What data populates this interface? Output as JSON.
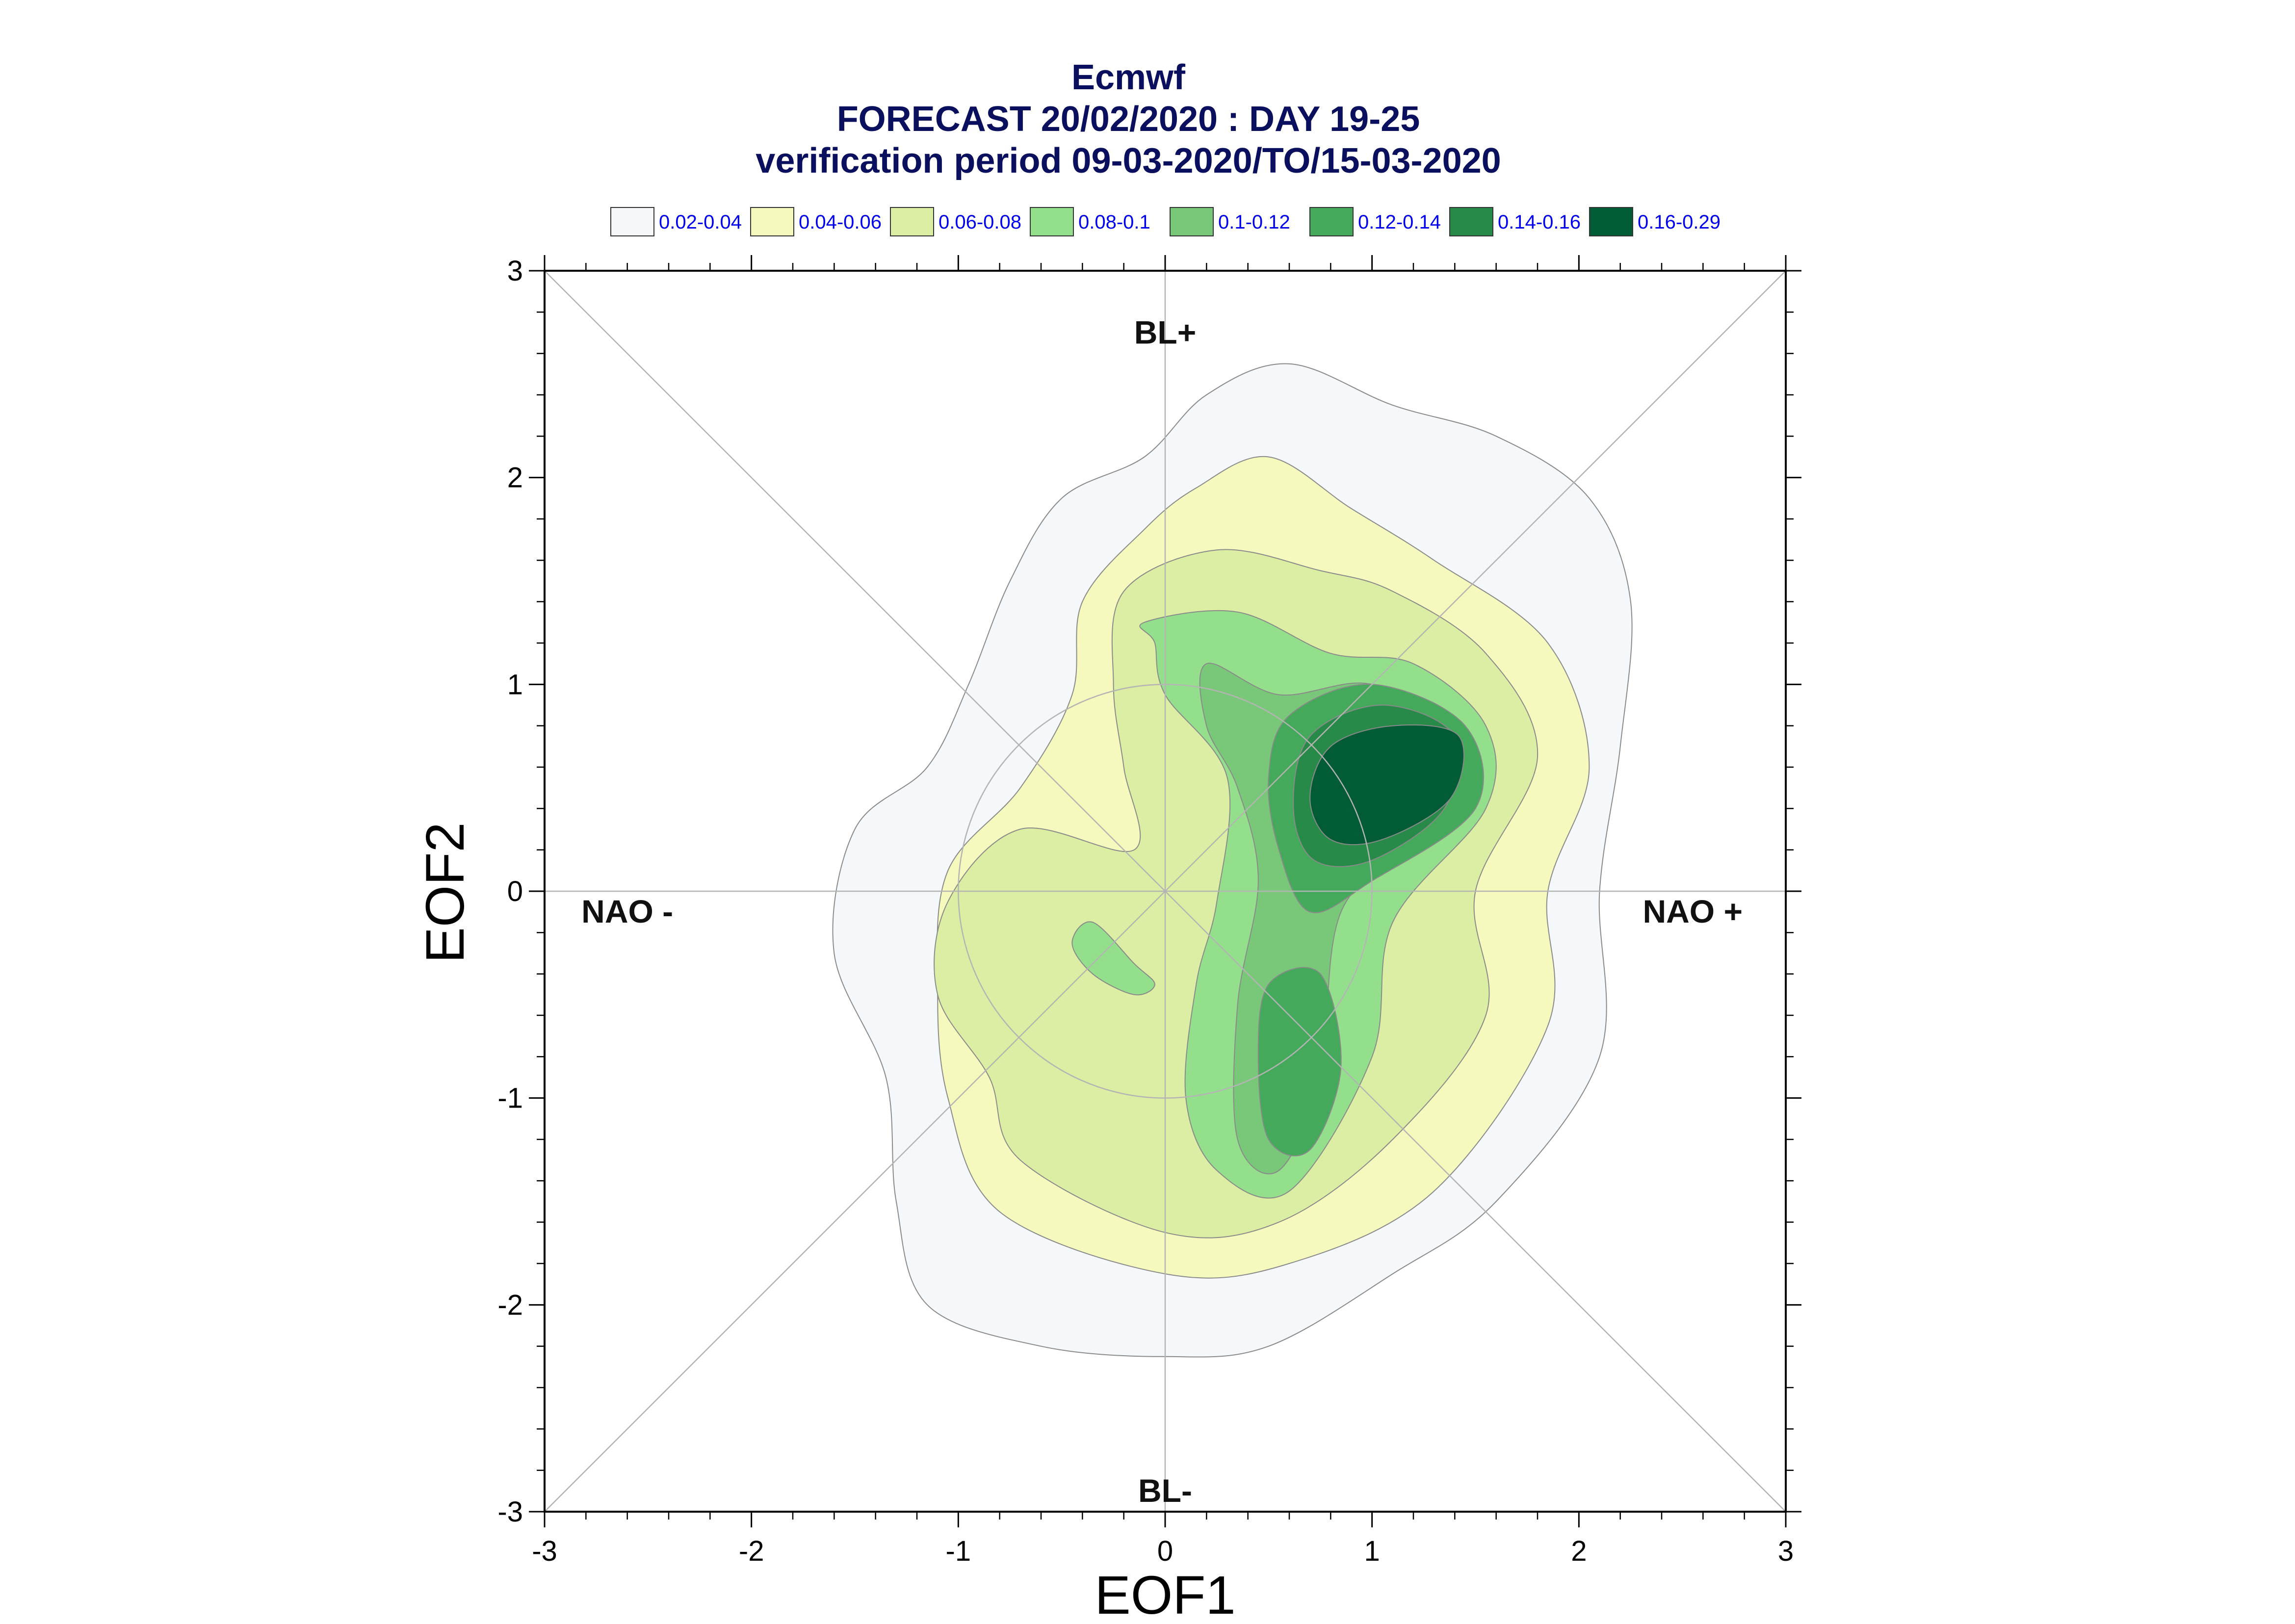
{
  "title": {
    "line1": "Ecmwf",
    "line2": "FORECAST 20/02/2020 : DAY 19-25",
    "line3": "verification period 09-03-2020/TO/15-03-2020"
  },
  "chart_data": {
    "type": "contour",
    "xlabel": "EOF1",
    "ylabel": "EOF2",
    "xlim": [
      -3,
      3
    ],
    "ylim": [
      -3,
      3
    ],
    "xticks": [
      -3,
      -2,
      -1,
      0,
      1,
      2,
      3
    ],
    "yticks": [
      -3,
      -2,
      -1,
      0,
      1,
      2,
      3
    ],
    "xtick_labels": [
      "-3",
      "-2",
      "-1",
      "0",
      "1",
      "2",
      "3"
    ],
    "ytick_labels": [
      "-3",
      "-2",
      "-1",
      "0",
      "1",
      "2",
      "3"
    ],
    "legend": [
      {
        "label": "0.02-0.04",
        "color": "#f4f8fb"
      },
      {
        "label": "0.04-0.06",
        "color": "#f6f9bd"
      },
      {
        "label": "0.06-0.08",
        "color": "#dceea3"
      },
      {
        "label": "0.08-0.1",
        "color": "#93df8c"
      },
      {
        "label": "0.1-0.12",
        "color": "#79c778"
      },
      {
        "label": "0.12-0.14",
        "color": "#45a95c"
      },
      {
        "label": "0.14-0.16",
        "color": "#288a48"
      },
      {
        "label": "0.16-0.29",
        "color": "#015b35"
      }
    ],
    "regimes": [
      {
        "label": "BL+",
        "x": 0,
        "y": 2.7
      },
      {
        "label": "BL-",
        "x": 0,
        "y": -2.9
      },
      {
        "label": "NAO -",
        "x": -2.6,
        "y": -0.1
      },
      {
        "label": "NAO +",
        "x": 2.55,
        "y": -0.1
      }
    ],
    "contours": [
      {
        "level": 0,
        "color": "#f4f8fb",
        "points": [
          [
            -0.1,
            2.1
          ],
          [
            0.2,
            2.4
          ],
          [
            0.6,
            2.55
          ],
          [
            1.1,
            2.35
          ],
          [
            1.6,
            2.2
          ],
          [
            2.05,
            1.9
          ],
          [
            2.25,
            1.4
          ],
          [
            2.2,
            0.7
          ],
          [
            2.1,
            0.0
          ],
          [
            2.1,
            -0.8
          ],
          [
            1.6,
            -1.5
          ],
          [
            1.1,
            -1.85
          ],
          [
            0.5,
            -2.2
          ],
          [
            0.0,
            -2.25
          ],
          [
            -0.6,
            -2.2
          ],
          [
            -1.15,
            -2.0
          ],
          [
            -1.3,
            -1.5
          ],
          [
            -1.35,
            -0.9
          ],
          [
            -1.6,
            -0.3
          ],
          [
            -1.5,
            0.3
          ],
          [
            -1.15,
            0.6
          ],
          [
            -0.95,
            1.0
          ],
          [
            -0.75,
            1.5
          ],
          [
            -0.5,
            1.9
          ]
        ]
      },
      {
        "level": 1,
        "color": "#f6f9bd",
        "points": [
          [
            0.15,
            1.95
          ],
          [
            0.5,
            2.1
          ],
          [
            0.9,
            1.85
          ],
          [
            1.3,
            1.6
          ],
          [
            1.85,
            1.2
          ],
          [
            2.05,
            0.6
          ],
          [
            1.85,
            0.0
          ],
          [
            1.85,
            -0.65
          ],
          [
            1.3,
            -1.45
          ],
          [
            0.6,
            -1.8
          ],
          [
            0.0,
            -1.85
          ],
          [
            -0.8,
            -1.55
          ],
          [
            -1.05,
            -1.0
          ],
          [
            -1.1,
            -0.45
          ],
          [
            -1.05,
            0.1
          ],
          [
            -0.7,
            0.5
          ],
          [
            -0.45,
            0.95
          ],
          [
            -0.4,
            1.4
          ],
          [
            -0.1,
            1.75
          ]
        ]
      },
      {
        "level": 2,
        "color": "#dceea3",
        "points": [
          [
            -0.2,
            1.45
          ],
          [
            0.25,
            1.65
          ],
          [
            0.75,
            1.55
          ],
          [
            1.1,
            1.45
          ],
          [
            1.55,
            1.15
          ],
          [
            1.8,
            0.65
          ],
          [
            1.5,
            0.0
          ],
          [
            1.55,
            -0.6
          ],
          [
            1.1,
            -1.2
          ],
          [
            0.55,
            -1.6
          ],
          [
            0.0,
            -1.65
          ],
          [
            -0.7,
            -1.3
          ],
          [
            -0.85,
            -0.9
          ],
          [
            -1.1,
            -0.5
          ],
          [
            -1.05,
            -0.05
          ],
          [
            -0.7,
            0.3
          ],
          [
            -0.15,
            0.2
          ],
          [
            -0.2,
            0.6
          ],
          [
            -0.25,
            1.0
          ]
        ]
      },
      {
        "level": 3,
        "color": "#93df8c",
        "points": [
          [
            -0.1,
            1.3
          ],
          [
            0.35,
            1.35
          ],
          [
            0.8,
            1.15
          ],
          [
            1.2,
            1.1
          ],
          [
            1.55,
            0.8
          ],
          [
            1.55,
            0.4
          ],
          [
            1.1,
            -0.15
          ],
          [
            1.0,
            -0.8
          ],
          [
            0.6,
            -1.45
          ],
          [
            0.25,
            -1.35
          ],
          [
            0.1,
            -1.0
          ],
          [
            0.15,
            -0.45
          ],
          [
            0.25,
            -0.05
          ],
          [
            0.3,
            0.55
          ],
          [
            0.0,
            0.95
          ],
          [
            -0.05,
            1.2
          ]
        ]
      },
      {
        "level": 3,
        "color": "#93df8c",
        "points": [
          [
            -0.35,
            -0.15
          ],
          [
            -0.15,
            -0.35
          ],
          [
            -0.05,
            -0.45
          ],
          [
            -0.15,
            -0.5
          ],
          [
            -0.35,
            -0.4
          ],
          [
            -0.45,
            -0.25
          ]
        ]
      },
      {
        "level": 4,
        "color": "#79c778",
        "points": [
          [
            0.2,
            1.1
          ],
          [
            0.55,
            0.95
          ],
          [
            1.0,
            1.0
          ],
          [
            1.4,
            0.75
          ],
          [
            1.25,
            0.3
          ],
          [
            0.85,
            -0.1
          ],
          [
            0.75,
            -0.9
          ],
          [
            0.55,
            -1.35
          ],
          [
            0.35,
            -1.2
          ],
          [
            0.35,
            -0.55
          ],
          [
            0.45,
            0.05
          ],
          [
            0.35,
            0.5
          ],
          [
            0.2,
            0.8
          ]
        ]
      },
      {
        "level": 5,
        "color": "#45a95c",
        "points": [
          [
            0.6,
            0.85
          ],
          [
            1.0,
            1.0
          ],
          [
            1.45,
            0.8
          ],
          [
            1.5,
            0.4
          ],
          [
            1.0,
            0.05
          ],
          [
            0.7,
            -0.1
          ],
          [
            0.55,
            0.2
          ],
          [
            0.5,
            0.55
          ]
        ]
      },
      {
        "level": 5,
        "color": "#45a95c",
        "points": [
          [
            0.5,
            -0.45
          ],
          [
            0.75,
            -0.4
          ],
          [
            0.85,
            -0.85
          ],
          [
            0.7,
            -1.25
          ],
          [
            0.5,
            -1.2
          ],
          [
            0.45,
            -0.8
          ]
        ]
      },
      {
        "level": 6,
        "color": "#288a48",
        "points": [
          [
            0.7,
            0.75
          ],
          [
            1.05,
            0.9
          ],
          [
            1.4,
            0.75
          ],
          [
            1.35,
            0.4
          ],
          [
            1.0,
            0.15
          ],
          [
            0.72,
            0.15
          ],
          [
            0.62,
            0.4
          ]
        ]
      },
      {
        "level": 7,
        "color": "#015b35",
        "points": [
          [
            0.8,
            0.7
          ],
          [
            1.1,
            0.8
          ],
          [
            1.42,
            0.75
          ],
          [
            1.38,
            0.45
          ],
          [
            1.05,
            0.25
          ],
          [
            0.8,
            0.25
          ],
          [
            0.7,
            0.45
          ]
        ]
      }
    ]
  }
}
